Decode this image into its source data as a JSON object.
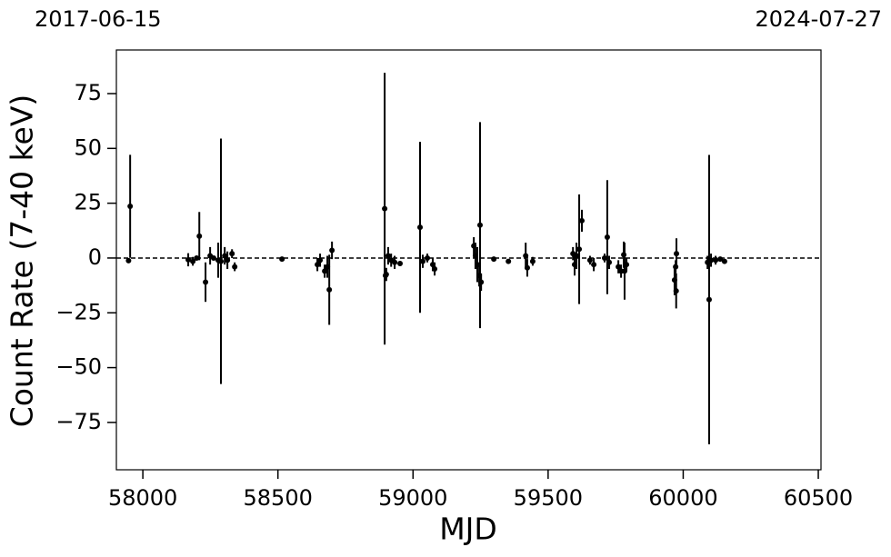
{
  "chart_data": {
    "type": "errorbar",
    "xlabel": "MJD",
    "ylabel": "Count Rate (7-40 keV)",
    "top_labels": [
      "2017-06-15",
      "2024-07-27"
    ],
    "xlim": [
      57902,
      60510
    ],
    "ylim": [
      -96.6,
      94.9
    ],
    "xticks": [
      58000,
      58500,
      59000,
      59500,
      60000,
      60500
    ],
    "yticks": [
      {
        "value": -75,
        "label": "−75"
      },
      {
        "value": -50,
        "label": "−50"
      },
      {
        "value": -25,
        "label": "−25"
      },
      0,
      25,
      50,
      75
    ],
    "hline": 0,
    "color": "#000000",
    "x": [
      57953,
      57947,
      58168,
      58185,
      58199,
      58209,
      58232,
      58249,
      58262,
      58279,
      58289,
      58303,
      58313,
      58330,
      58340,
      58515,
      58646,
      58656,
      58673,
      58683,
      58690,
      58700,
      58895,
      58898,
      58901,
      58908,
      58919,
      58932,
      58952,
      59026,
      59036,
      59053,
      59073,
      59080,
      59225,
      59231,
      59238,
      59245,
      59248,
      59252,
      59299,
      59353,
      59417,
      59423,
      59443,
      59592,
      59598,
      59605,
      59615,
      59625,
      59655,
      59669,
      59709,
      59719,
      59726,
      59760,
      59770,
      59780,
      59783,
      59790,
      59972,
      59968,
      59974,
      59975,
      60090,
      60096,
      60103,
      60120,
      60137,
      60153
    ],
    "values": [
      23.6,
      -1.2,
      -0.8,
      -1.5,
      0,
      10,
      -11,
      1,
      0,
      -1,
      -1.5,
      1,
      -1,
      2,
      -4,
      -0.5,
      -3,
      -1,
      -6,
      -4,
      -14.5,
      3.5,
      22.5,
      -8,
      -7.5,
      1,
      -1,
      -2,
      -2.5,
      14,
      -1.5,
      0,
      -3,
      -5,
      5.5,
      1,
      -3,
      -8,
      15,
      -11,
      -0.5,
      -1.5,
      1,
      -4.5,
      -1.5,
      2,
      -3,
      1,
      4,
      17,
      -1,
      -3,
      0,
      9.5,
      -2,
      -4,
      -6,
      1.5,
      -6,
      -3,
      -4,
      -10,
      -15,
      2,
      -2,
      -19,
      -1,
      -1,
      -0.5,
      -1.5
    ],
    "errors": [
      23.5,
      0,
      3,
      2,
      0,
      11,
      9,
      4,
      0,
      8,
      56,
      4,
      4,
      2,
      2,
      0,
      3,
      3,
      3,
      5,
      16,
      4,
      62,
      2,
      3,
      4,
      3,
      3,
      1,
      39,
      3,
      2,
      3,
      3,
      4,
      6,
      8,
      5,
      47,
      4,
      0,
      0,
      6,
      4,
      2,
      3,
      5,
      6,
      25,
      5,
      2,
      3,
      2,
      26,
      3,
      3,
      3,
      6,
      13,
      3,
      3,
      7,
      8,
      7,
      3,
      66,
      3,
      2,
      1,
      1
    ]
  }
}
